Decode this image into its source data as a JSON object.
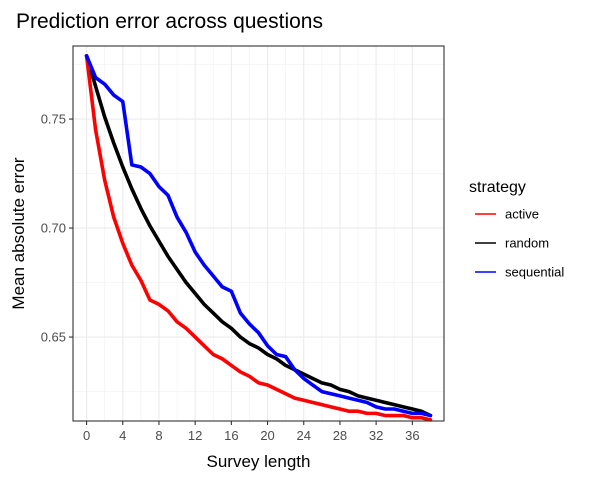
{
  "chart_data": {
    "type": "line",
    "title": "Prediction error across questions",
    "xlabel": "Survey length",
    "ylabel": "Mean absolute error",
    "xlim": [
      -1.5,
      39.5
    ],
    "ylim": [
      0.6115,
      0.7835
    ],
    "x_ticks": [
      0,
      4,
      8,
      12,
      16,
      20,
      24,
      28,
      32,
      36
    ],
    "x_tick_labels": [
      "0",
      "4",
      "8",
      "12",
      "16",
      "20",
      "24",
      "28",
      "32",
      "36"
    ],
    "y_ticks": [
      0.65,
      0.7,
      0.75
    ],
    "y_tick_labels": [
      "0.65",
      "0.70",
      "0.75"
    ],
    "grid": true,
    "legend": {
      "title": "strategy",
      "placement": "right"
    },
    "x": [
      0,
      1,
      2,
      3,
      4,
      5,
      6,
      7,
      8,
      9,
      10,
      11,
      12,
      13,
      14,
      15,
      16,
      17,
      18,
      19,
      20,
      21,
      22,
      23,
      24,
      25,
      26,
      27,
      28,
      29,
      30,
      31,
      32,
      33,
      34,
      35,
      36,
      37,
      38
    ],
    "series": [
      {
        "name": "active",
        "color": "#ff0000",
        "values": [
          0.779,
          0.745,
          0.722,
          0.705,
          0.693,
          0.683,
          0.676,
          0.667,
          0.665,
          0.662,
          0.657,
          0.654,
          0.65,
          0.646,
          0.642,
          0.64,
          0.637,
          0.634,
          0.632,
          0.629,
          0.628,
          0.626,
          0.624,
          0.622,
          0.621,
          0.62,
          0.619,
          0.618,
          0.617,
          0.616,
          0.616,
          0.615,
          0.615,
          0.614,
          0.614,
          0.614,
          0.613,
          0.613,
          0.612
        ]
      },
      {
        "name": "random",
        "color": "#000000",
        "values": [
          0.779,
          0.765,
          0.751,
          0.739,
          0.728,
          0.718,
          0.709,
          0.701,
          0.694,
          0.687,
          0.681,
          0.675,
          0.67,
          0.665,
          0.661,
          0.657,
          0.654,
          0.65,
          0.647,
          0.645,
          0.642,
          0.64,
          0.637,
          0.635,
          0.633,
          0.631,
          0.629,
          0.628,
          0.626,
          0.625,
          0.623,
          0.622,
          0.621,
          0.62,
          0.619,
          0.618,
          0.617,
          0.616,
          0.614
        ]
      },
      {
        "name": "sequential",
        "color": "#0000ff",
        "values": [
          0.779,
          0.769,
          0.766,
          0.761,
          0.758,
          0.729,
          0.728,
          0.725,
          0.719,
          0.715,
          0.705,
          0.698,
          0.689,
          0.683,
          0.678,
          0.673,
          0.671,
          0.661,
          0.656,
          0.652,
          0.646,
          0.642,
          0.641,
          0.635,
          0.631,
          0.628,
          0.625,
          0.624,
          0.623,
          0.622,
          0.621,
          0.62,
          0.618,
          0.617,
          0.617,
          0.616,
          0.615,
          0.615,
          0.614
        ]
      }
    ]
  }
}
